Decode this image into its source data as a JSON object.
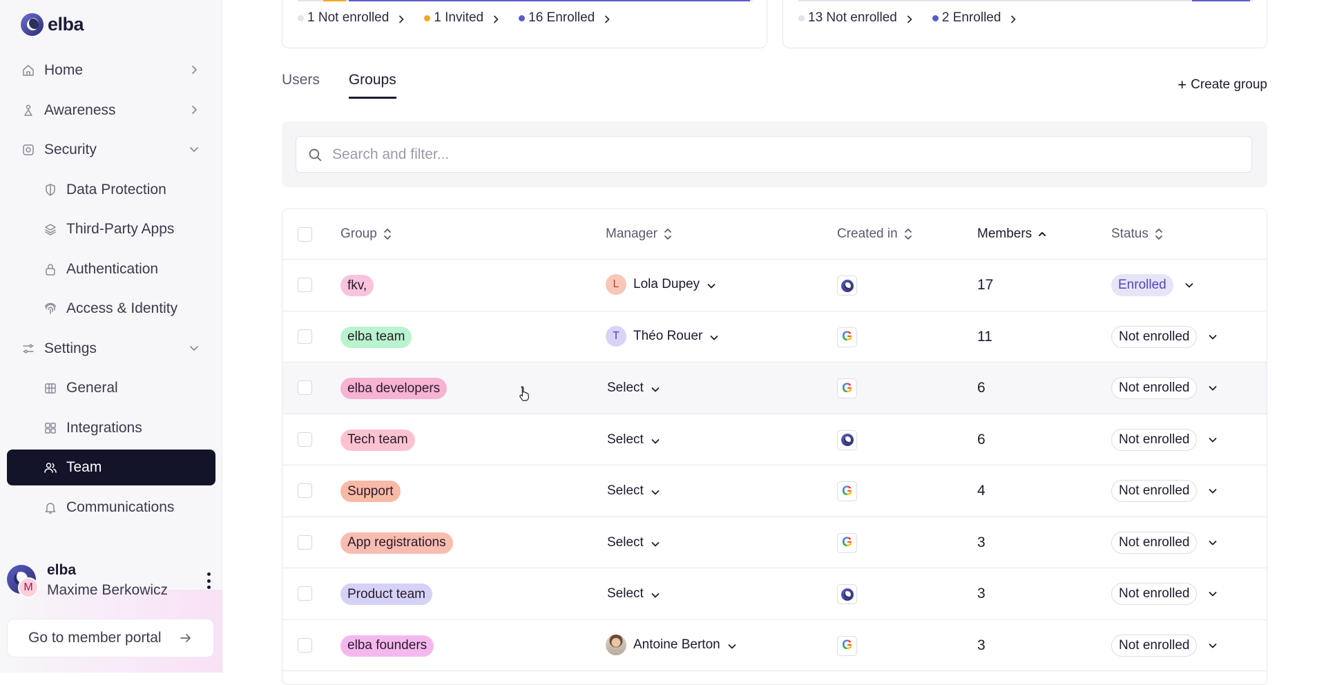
{
  "app": {
    "name": "elba"
  },
  "sidebar": {
    "items": [
      {
        "label": "Home",
        "icon": "home-icon",
        "chevron": "right"
      },
      {
        "label": "Awareness",
        "icon": "awareness-icon",
        "chevron": "right"
      },
      {
        "label": "Security",
        "icon": "security-icon",
        "chevron": "down"
      },
      {
        "label": "Data Protection",
        "icon": "shield-icon",
        "sub": true
      },
      {
        "label": "Third-Party Apps",
        "icon": "layers-icon",
        "sub": true
      },
      {
        "label": "Authentication",
        "icon": "lock-icon",
        "sub": true
      },
      {
        "label": "Access & Identity",
        "icon": "fingerprint-icon",
        "sub": true
      },
      {
        "label": "Settings",
        "icon": "sliders-icon",
        "chevron": "down"
      },
      {
        "label": "General",
        "icon": "building-icon",
        "sub": true
      },
      {
        "label": "Integrations",
        "icon": "puzzle-icon",
        "sub": true
      },
      {
        "label": "Team",
        "icon": "users-icon",
        "sub": true,
        "active": true
      },
      {
        "label": "Communications",
        "icon": "bell-icon",
        "sub": true
      }
    ],
    "user": {
      "org": "elba",
      "initial": "M",
      "name": "Maxime Berkowicz"
    },
    "portal_button": "Go to member portal"
  },
  "stats": {
    "users": {
      "legend": [
        {
          "label": "1 Not enrolled",
          "color": "#e3e3ea"
        },
        {
          "label": "1 Invited",
          "color": "#f5a623"
        },
        {
          "label": "16 Enrolled",
          "color": "#5b5bc8"
        }
      ],
      "fractions": [
        0.056,
        0.056,
        0.888
      ]
    },
    "groups": {
      "legend": [
        {
          "label": "13 Not enrolled",
          "color": "#e3e3ea"
        },
        {
          "label": "2 Enrolled",
          "color": "#5b5bc8"
        }
      ],
      "fractions": [
        0.867,
        0.133
      ]
    }
  },
  "tabs": [
    {
      "label": "Users",
      "active": false
    },
    {
      "label": "Groups",
      "active": true
    }
  ],
  "create_group_label": "Create group",
  "search": {
    "placeholder": "Search and filter..."
  },
  "table": {
    "headers": {
      "group": "Group",
      "manager": "Manager",
      "created_in": "Created in",
      "members": "Members",
      "status": "Status"
    },
    "rows": [
      {
        "group": "fkv,",
        "pill_bg": "#f9c3dd",
        "manager": "Lola Dupey",
        "manager_initial": "L",
        "manager_av_bg": "#f8c7b8",
        "manager_av_color": "#b4472a",
        "created_in": "elba",
        "members": "17",
        "status": "Enrolled",
        "status_kind": "enrolled"
      },
      {
        "group": "elba team",
        "pill_bg": "#b8f4cf",
        "manager": "Théo Rouer",
        "manager_initial": "T",
        "manager_av_bg": "#d8d4f6",
        "manager_av_color": "#4a42a8",
        "created_in": "google",
        "members": "11",
        "status": "Not enrolled",
        "status_kind": "not"
      },
      {
        "group": "elba developers",
        "pill_bg": "#f7b3d3",
        "manager": "Select",
        "created_in": "google",
        "members": "6",
        "status": "Not enrolled",
        "status_kind": "not",
        "hover": true
      },
      {
        "group": "Tech team",
        "pill_bg": "#fbc3cf",
        "manager": "Select",
        "created_in": "elba",
        "members": "6",
        "status": "Not enrolled",
        "status_kind": "not"
      },
      {
        "group": "Support",
        "pill_bg": "#f8b9a6",
        "manager": "Select",
        "created_in": "google",
        "members": "4",
        "status": "Not enrolled",
        "status_kind": "not"
      },
      {
        "group": "App registrations",
        "pill_bg": "#f8bdb0",
        "manager": "Select",
        "created_in": "google",
        "members": "3",
        "status": "Not enrolled",
        "status_kind": "not"
      },
      {
        "group": "Product team",
        "pill_bg": "#d4d2f6",
        "manager": "Select",
        "created_in": "elba",
        "members": "3",
        "status": "Not enrolled",
        "status_kind": "not"
      },
      {
        "group": "elba founders",
        "pill_bg": "#f5b8ee",
        "manager": "Antoine Berton",
        "manager_photo": true,
        "created_in": "google",
        "members": "3",
        "status": "Not enrolled",
        "status_kind": "not"
      }
    ]
  }
}
